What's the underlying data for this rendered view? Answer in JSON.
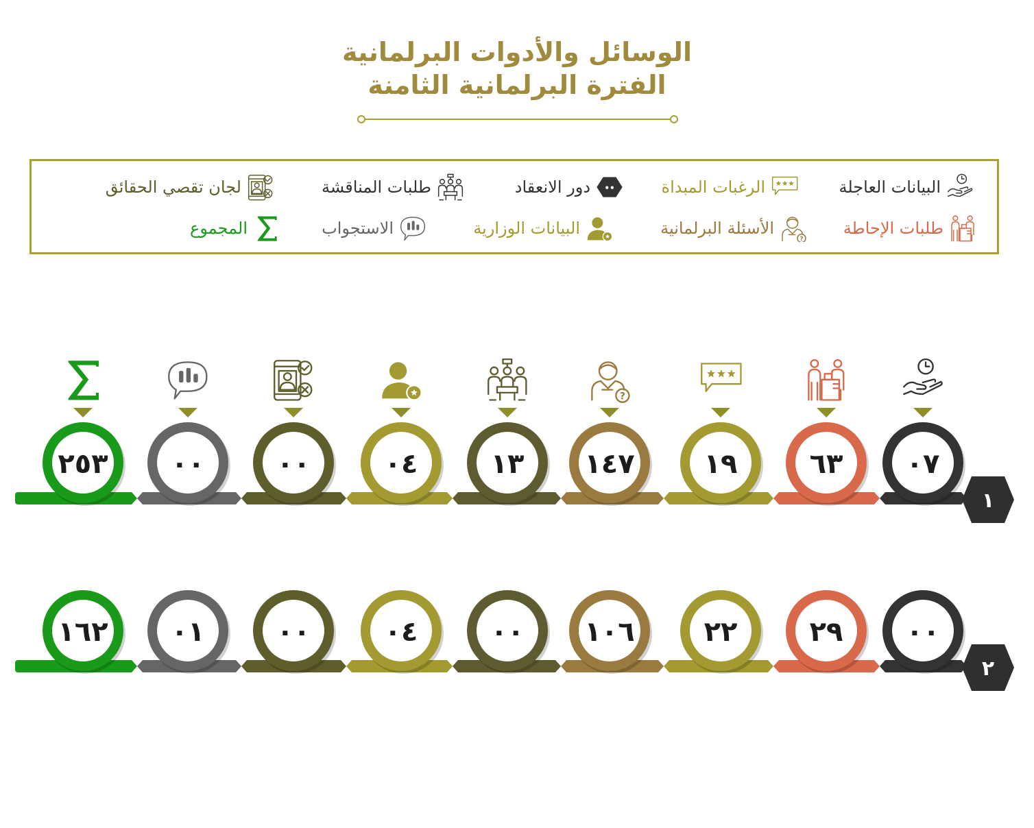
{
  "title": {
    "line1": "الوسائل والأدوات البرلمانية",
    "line2": "الفترة البرلمانية الثامنة"
  },
  "colors": {
    "title": "#a08a3c",
    "legend_border": "#a8a034",
    "row_label_bg": "#2f2f2f"
  },
  "legend": [
    {
      "label": "البيانات العاجلة",
      "icon": "hand-clock-icon",
      "color": "#333333"
    },
    {
      "label": "الرغبات المبداة",
      "icon": "rating-speech-icon",
      "color": "#a39a32"
    },
    {
      "label": "دور الانعقاد",
      "icon": "session-hexagon-icon",
      "color": "#333333"
    },
    {
      "label": "طلبات المناقشة",
      "icon": "meeting-group-icon",
      "color": "#333333"
    },
    {
      "label": "لجان تقصي الحقائق",
      "icon": "fact-finding-phone-icon",
      "color": "#5e5d2c"
    },
    {
      "label": "طلبات الإحاطة",
      "icon": "briefing-desk-icon",
      "color": "#d8694a"
    },
    {
      "label": "الأسئلة البرلمانية",
      "icon": "person-question-icon",
      "color": "#9a7a3e"
    },
    {
      "label": "البيانات الوزارية",
      "icon": "person-star-icon",
      "color": "#a39a32"
    },
    {
      "label": "الاستجواب",
      "icon": "chat-bars-icon",
      "color": "#666666"
    },
    {
      "label": "المجموع",
      "icon": "sigma-icon",
      "color": "#1a9a1a"
    }
  ],
  "chart_data": {
    "type": "table",
    "categories": [
      "البيانات العاجلة",
      "طلبات الإحاطة",
      "الرغبات المبداة",
      "الأسئلة البرلمانية",
      "طلبات المناقشة",
      "البيانات الوزارية",
      "لجان تقصي الحقائق",
      "الاستجواب",
      "المجموع"
    ],
    "category_icons": [
      "hand-clock-icon",
      "briefing-desk-icon",
      "rating-speech-icon",
      "person-question-icon",
      "meeting-group-icon",
      "person-star-icon",
      "fact-finding-phone-icon",
      "chat-bars-icon",
      "sigma-icon"
    ],
    "colors": [
      "#333333",
      "#d8694a",
      "#a39a32",
      "#9a7a3e",
      "#5e5b30",
      "#a39a32",
      "#5e5d2c",
      "#666666",
      "#1a9a1a"
    ],
    "series": [
      {
        "name": "١",
        "values": [
          "٠٧",
          "٦٣",
          "١٩",
          "١٤٧",
          "١٣",
          "٠٤",
          "٠٠",
          "٠٠",
          "٢٥٣"
        ]
      },
      {
        "name": "٢",
        "values": [
          "٠٠",
          "٢٩",
          "٢٢",
          "١٠٦",
          "٠٠",
          "٠٤",
          "٠٠",
          "٠١",
          "١٦٢"
        ]
      }
    ]
  }
}
